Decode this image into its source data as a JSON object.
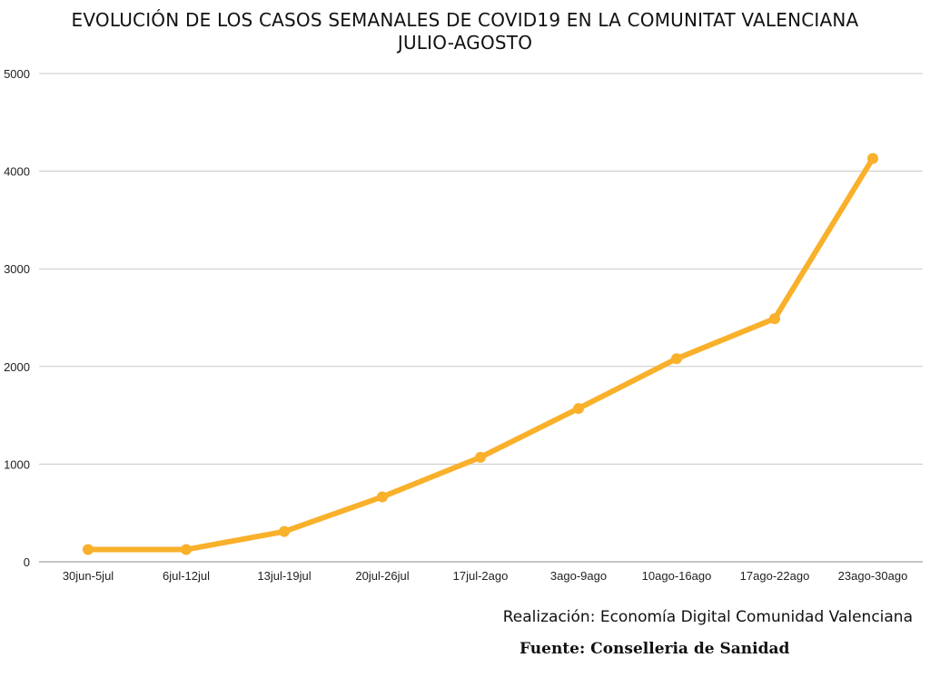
{
  "title_line1": "EVOLUCIÓN DE LOS CASOS SEMANALES DE COVID19 EN LA COMUNITAT VALENCIANA",
  "title_line2": "JULIO-AGOSTO",
  "credit": "Realización: Economía Digital Comunidad Valenciana",
  "source": "Fuente: Conselleria de Sanidad",
  "colors": {
    "line": "#F9B02A",
    "grid": "#C8C8C8",
    "axis": "#888888"
  },
  "chart_data": {
    "type": "line",
    "categories": [
      "30jun-5jul",
      "6jul-12jul",
      "13jul-19jul",
      "20jul-26jul",
      "17jul-2ago",
      "3ago-9ago",
      "10ago-16ago",
      "17ago-22ago",
      "23ago-30ago"
    ],
    "values": [
      125,
      125,
      310,
      665,
      1070,
      1570,
      2080,
      2490,
      4130
    ],
    "yticks": [
      0,
      1000,
      2000,
      3000,
      4000,
      5000
    ],
    "ylim": [
      0,
      5000
    ],
    "grid": true,
    "legend": "none"
  }
}
